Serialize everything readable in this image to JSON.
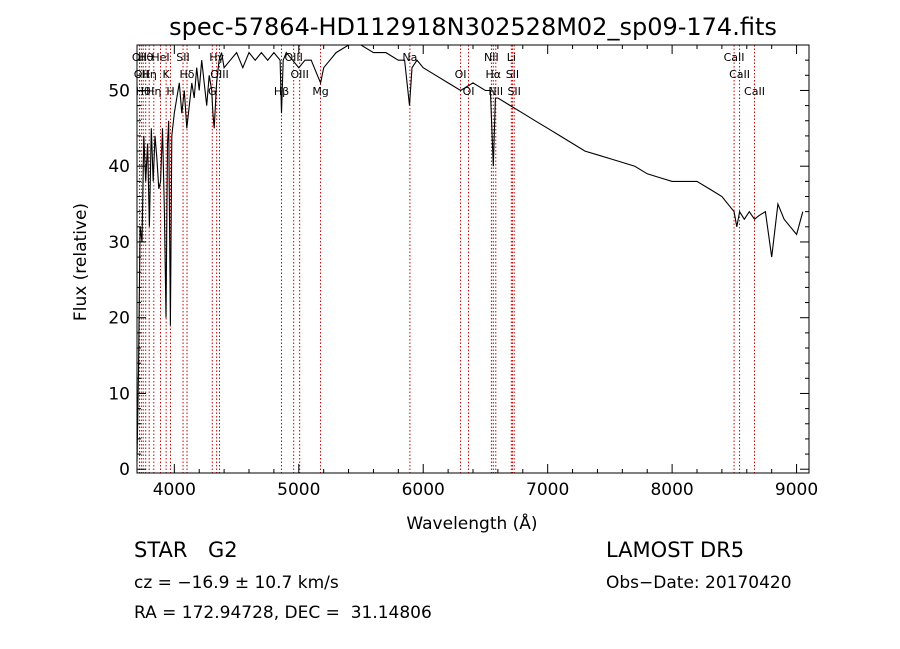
{
  "header": {
    "title": "spec-57864-HD112918N302528M02_sp09-174.fits"
  },
  "chart_data": {
    "type": "line",
    "title": "spec-57864-HD112918N302528M02_sp09-174.fits",
    "xlabel": "Wavelength (Å)",
    "ylabel": "Flux (relative)",
    "xlim": [
      3700,
      9100
    ],
    "ylim": [
      -0.5,
      56
    ],
    "xticks": [
      4000,
      5000,
      6000,
      7000,
      8000,
      9000
    ],
    "yticks": [
      0,
      10,
      20,
      30,
      40,
      50
    ],
    "grid": false,
    "series": [
      {
        "x": [
          3700,
          3712,
          3725,
          3740,
          3755,
          3770,
          3785,
          3800,
          3815,
          3830,
          3845,
          3860,
          3875,
          3890,
          3905,
          3920,
          3933,
          3945,
          3955,
          3968,
          3980,
          4000,
          4020,
          4040,
          4060,
          4080,
          4100,
          4120,
          4140,
          4160,
          4180,
          4200,
          4220,
          4240,
          4260,
          4280,
          4300,
          4310,
          4320,
          4340,
          4360,
          4380,
          4400,
          4450,
          4500,
          4550,
          4600,
          4650,
          4700,
          4750,
          4800,
          4850,
          4861,
          4875,
          4900,
          4950,
          5000,
          5050,
          5100,
          5150,
          5175,
          5200,
          5250,
          5300,
          5400,
          5500,
          5600,
          5700,
          5800,
          5850,
          5890,
          5910,
          5950,
          6000,
          6100,
          6200,
          6300,
          6400,
          6500,
          6540,
          6563,
          6580,
          6600,
          6700,
          6800,
          6900,
          7000,
          7100,
          7200,
          7300,
          7400,
          7500,
          7600,
          7700,
          7800,
          7900,
          8000,
          8100,
          8200,
          8300,
          8400,
          8498,
          8520,
          8542,
          8580,
          8620,
          8662,
          8700,
          8750,
          8800,
          8850,
          8900,
          8950,
          9000,
          9050
        ],
        "values": [
          1,
          13,
          32,
          30,
          44,
          38,
          43,
          32,
          45,
          38,
          44,
          41,
          37,
          38,
          45,
          34,
          20,
          43,
          46,
          19,
          44,
          47,
          49,
          51,
          47,
          50,
          45,
          48,
          51,
          49,
          53,
          50,
          54,
          51,
          48,
          52,
          50,
          47,
          45,
          51,
          54,
          55,
          53,
          54,
          55,
          53,
          55,
          54,
          55,
          54,
          55,
          54,
          47,
          54,
          55,
          54,
          53,
          54,
          54,
          52,
          51,
          53,
          54,
          55,
          56,
          56,
          55,
          55,
          54,
          54,
          48,
          53,
          54,
          53,
          52,
          51,
          50,
          51,
          50,
          50,
          40,
          49,
          49,
          48,
          47,
          46,
          45,
          44,
          43,
          42,
          41.5,
          41,
          40.5,
          40,
          39,
          38.5,
          38,
          38,
          38,
          37,
          36,
          34,
          32,
          34,
          33,
          34,
          33,
          33.5,
          34,
          28,
          35,
          33,
          32,
          31,
          34
        ]
      }
    ],
    "lines": [
      {
        "x": 3720,
        "top": "OII"
      },
      {
        "x": 3735,
        "top": "OII"
      },
      {
        "x": 3750,
        "top": "Hθ"
      },
      {
        "x": 3770,
        "top": "Hθ"
      },
      {
        "x": 3798,
        "top": "Hη"
      },
      {
        "x": 3835,
        "top": "Hη"
      },
      {
        "x": 3889,
        "top": "HeI"
      },
      {
        "x": 3934,
        "top": "K"
      },
      {
        "x": 3969,
        "top": "H"
      },
      {
        "x": 4070,
        "top": "SII"
      },
      {
        "x": 4102,
        "top": "Hδ"
      },
      {
        "x": 4305,
        "top": "G"
      },
      {
        "x": 4340,
        "top": "Hγ"
      },
      {
        "x": 4363,
        "top": "OIII"
      },
      {
        "x": 4861,
        "top": "Hβ"
      },
      {
        "x": 4959,
        "top": "OIII"
      },
      {
        "x": 5007,
        "top": "OIII"
      },
      {
        "x": 5175,
        "top": "Mg"
      },
      {
        "x": 5893,
        "top": "Na"
      },
      {
        "x": 6300,
        "top": "OI"
      },
      {
        "x": 6364,
        "top": "OI"
      },
      {
        "x": 6548,
        "top": "NII"
      },
      {
        "x": 6563,
        "top": "Hα"
      },
      {
        "x": 6583,
        "top": "NII"
      },
      {
        "x": 6708,
        "top": "Li"
      },
      {
        "x": 6717,
        "top": "SII"
      },
      {
        "x": 6731,
        "top": "SII"
      },
      {
        "x": 8498,
        "top": "CaII"
      },
      {
        "x": 8542,
        "top": "CaII"
      },
      {
        "x": 8662,
        "top": "CaII"
      }
    ]
  },
  "info": {
    "class": "STAR",
    "subclass": "G2",
    "survey": "LAMOST DR5",
    "cz": "cz = −16.9 ± 10.7 km/s",
    "obs_date": "Obs−Date: 20170420",
    "radec": "RA = 172.94728, DEC =  31.14806"
  },
  "colors": {
    "spectrum": "#000000",
    "line_markers": "#cc0000"
  }
}
